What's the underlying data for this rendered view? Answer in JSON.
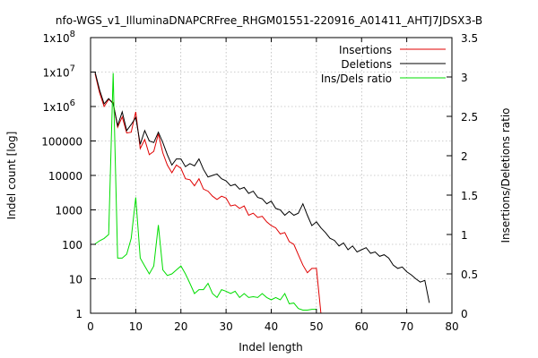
{
  "chart_data": {
    "type": "line",
    "title": "nfo-WGS_v1_IlluminaDNAPCRFree_RHGM01551-220916_A01411_AHTJ7JDSX3-B",
    "xlabel": "Indel length",
    "ylabel": "Indel count [log]",
    "y2label": "Insertions/Deletions ratio",
    "xlim": [
      0,
      80
    ],
    "ylim": [
      1,
      100000000
    ],
    "y_scale": "log",
    "y2lim": [
      0,
      3.5
    ],
    "grid": true,
    "legend_position": "top-right",
    "x_ticks": [
      "0",
      "10",
      "20",
      "30",
      "40",
      "50",
      "60",
      "70",
      "80"
    ],
    "y_ticks": [
      {
        "value": 1,
        "label": "1"
      },
      {
        "value": 10,
        "label": "10"
      },
      {
        "value": 100,
        "label": "100"
      },
      {
        "value": 1000,
        "label": "1000"
      },
      {
        "value": 10000,
        "label": "10000"
      },
      {
        "value": 100000,
        "label": "100000"
      },
      {
        "value": 1000000,
        "label": "1x10"
      },
      {
        "value": 10000000,
        "label": "1x10"
      },
      {
        "value": 100000000,
        "label": "1x10"
      }
    ],
    "y_tick_superscripts": {
      "1000000": "6",
      "10000000": "7",
      "100000000": "8"
    },
    "y2_ticks": [
      "0",
      "0.5",
      "1",
      "1.5",
      "2",
      "2.5",
      "3",
      "3.5"
    ],
    "series": [
      {
        "name": "Insertions",
        "axis": "y",
        "color": "#e00000",
        "points": [
          [
            1,
            9000000
          ],
          [
            2,
            2500000
          ],
          [
            3,
            1000000
          ],
          [
            4,
            1600000
          ],
          [
            5,
            1300000
          ],
          [
            6,
            250000
          ],
          [
            7,
            500000
          ],
          [
            8,
            170000
          ],
          [
            9,
            180000
          ],
          [
            10,
            700000
          ],
          [
            11,
            60000
          ],
          [
            12,
            110000
          ],
          [
            13,
            40000
          ],
          [
            14,
            50000
          ],
          [
            15,
            160000
          ],
          [
            16,
            45000
          ],
          [
            17,
            20000
          ],
          [
            18,
            12000
          ],
          [
            19,
            20000
          ],
          [
            20,
            16000
          ],
          [
            21,
            8000
          ],
          [
            22,
            7500
          ],
          [
            23,
            5000
          ],
          [
            24,
            8000
          ],
          [
            25,
            4000
          ],
          [
            26,
            3500
          ],
          [
            27,
            2500
          ],
          [
            28,
            2000
          ],
          [
            29,
            2500
          ],
          [
            30,
            2200
          ],
          [
            31,
            1300
          ],
          [
            32,
            1400
          ],
          [
            33,
            1100
          ],
          [
            34,
            1300
          ],
          [
            35,
            700
          ],
          [
            36,
            800
          ],
          [
            37,
            600
          ],
          [
            38,
            650
          ],
          [
            39,
            450
          ],
          [
            40,
            350
          ],
          [
            41,
            300
          ],
          [
            42,
            200
          ],
          [
            43,
            220
          ],
          [
            44,
            120
          ],
          [
            45,
            100
          ],
          [
            46,
            50
          ],
          [
            47,
            25
          ],
          [
            48,
            15
          ],
          [
            49,
            20
          ],
          [
            50,
            20
          ],
          [
            51,
            1
          ]
        ]
      },
      {
        "name": "Deletions",
        "axis": "y",
        "color": "#000000",
        "points": [
          [
            1,
            10000000
          ],
          [
            2,
            3000000
          ],
          [
            3,
            1200000
          ],
          [
            4,
            1700000
          ],
          [
            5,
            1200000
          ],
          [
            6,
            280000
          ],
          [
            7,
            700000
          ],
          [
            8,
            200000
          ],
          [
            9,
            300000
          ],
          [
            10,
            480000
          ],
          [
            11,
            80000
          ],
          [
            12,
            200000
          ],
          [
            13,
            100000
          ],
          [
            14,
            90000
          ],
          [
            15,
            180000
          ],
          [
            16,
            90000
          ],
          [
            17,
            40000
          ],
          [
            18,
            20000
          ],
          [
            19,
            30000
          ],
          [
            20,
            30000
          ],
          [
            21,
            18000
          ],
          [
            22,
            22000
          ],
          [
            23,
            19000
          ],
          [
            24,
            30000
          ],
          [
            25,
            15000
          ],
          [
            26,
            9000
          ],
          [
            27,
            10000
          ],
          [
            28,
            11000
          ],
          [
            29,
            8000
          ],
          [
            30,
            7000
          ],
          [
            31,
            5000
          ],
          [
            32,
            5500
          ],
          [
            33,
            4000
          ],
          [
            34,
            4500
          ],
          [
            35,
            3000
          ],
          [
            36,
            3500
          ],
          [
            37,
            2300
          ],
          [
            38,
            2100
          ],
          [
            39,
            1500
          ],
          [
            40,
            1800
          ],
          [
            41,
            1100
          ],
          [
            42,
            1000
          ],
          [
            43,
            700
          ],
          [
            44,
            900
          ],
          [
            45,
            700
          ],
          [
            46,
            800
          ],
          [
            47,
            1500
          ],
          [
            48,
            700
          ],
          [
            49,
            350
          ],
          [
            50,
            450
          ],
          [
            51,
            300
          ],
          [
            52,
            220
          ],
          [
            53,
            150
          ],
          [
            54,
            130
          ],
          [
            55,
            90
          ],
          [
            56,
            110
          ],
          [
            57,
            70
          ],
          [
            58,
            90
          ],
          [
            59,
            60
          ],
          [
            60,
            70
          ],
          [
            61,
            80
          ],
          [
            62,
            55
          ],
          [
            63,
            60
          ],
          [
            64,
            45
          ],
          [
            65,
            50
          ],
          [
            66,
            40
          ],
          [
            67,
            25
          ],
          [
            68,
            20
          ],
          [
            69,
            22
          ],
          [
            70,
            16
          ],
          [
            71,
            13
          ],
          [
            72,
            10
          ],
          [
            73,
            8
          ],
          [
            74,
            9
          ],
          [
            75,
            2
          ]
        ]
      },
      {
        "name": "Ins/Dels ratio",
        "axis": "y2",
        "color": "#00dd00",
        "points": [
          [
            1,
            0.88
          ],
          [
            2,
            0.92
          ],
          [
            3,
            0.95
          ],
          [
            4,
            1.0
          ],
          [
            5,
            3.05
          ],
          [
            6,
            0.7
          ],
          [
            7,
            0.7
          ],
          [
            8,
            0.75
          ],
          [
            9,
            0.95
          ],
          [
            10,
            1.47
          ],
          [
            11,
            0.7
          ],
          [
            12,
            0.6
          ],
          [
            13,
            0.5
          ],
          [
            14,
            0.6
          ],
          [
            15,
            1.12
          ],
          [
            16,
            0.55
          ],
          [
            17,
            0.48
          ],
          [
            18,
            0.5
          ],
          [
            19,
            0.55
          ],
          [
            20,
            0.6
          ],
          [
            21,
            0.5
          ],
          [
            22,
            0.38
          ],
          [
            23,
            0.25
          ],
          [
            24,
            0.3
          ],
          [
            25,
            0.3
          ],
          [
            26,
            0.38
          ],
          [
            27,
            0.25
          ],
          [
            28,
            0.2
          ],
          [
            29,
            0.3
          ],
          [
            30,
            0.28
          ],
          [
            31,
            0.25
          ],
          [
            32,
            0.28
          ],
          [
            33,
            0.2
          ],
          [
            34,
            0.25
          ],
          [
            35,
            0.2
          ],
          [
            36,
            0.21
          ],
          [
            37,
            0.2
          ],
          [
            38,
            0.25
          ],
          [
            39,
            0.2
          ],
          [
            40,
            0.17
          ],
          [
            41,
            0.2
          ],
          [
            42,
            0.17
          ],
          [
            43,
            0.25
          ],
          [
            44,
            0.12
          ],
          [
            45,
            0.13
          ],
          [
            46,
            0.06
          ],
          [
            47,
            0.04
          ],
          [
            48,
            0.04
          ],
          [
            49,
            0.05
          ],
          [
            50,
            0.05
          ]
        ]
      }
    ]
  }
}
